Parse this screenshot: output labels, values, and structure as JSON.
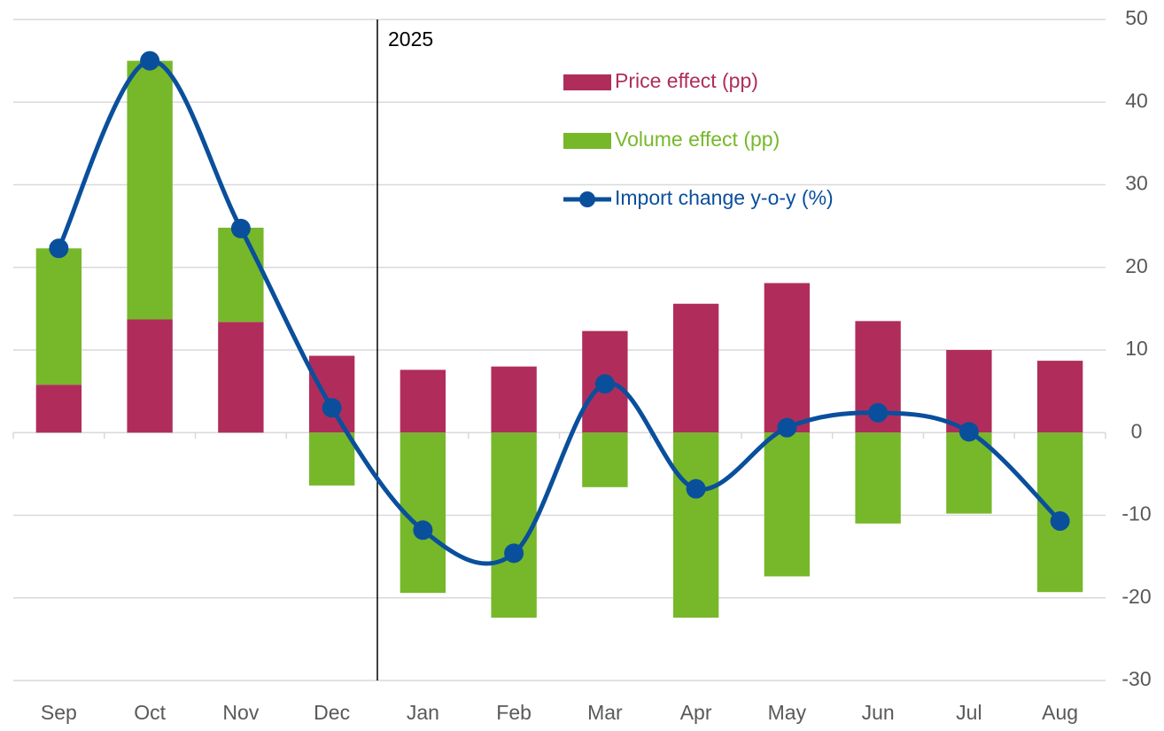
{
  "chart_data": {
    "type": "bar",
    "categories": [
      "Sep",
      "Oct",
      "Nov",
      "Dec",
      "Jan",
      "Feb",
      "Mar",
      "Apr",
      "May",
      "Jun",
      "Jul",
      "Aug"
    ],
    "series": [
      {
        "name": "Price effect (pp)",
        "color": "#b02d5b",
        "type": "bar",
        "values": [
          5.8,
          13.7,
          13.4,
          9.3,
          7.6,
          8.0,
          12.3,
          15.6,
          18.1,
          13.5,
          10.0,
          8.7
        ]
      },
      {
        "name": "Volume effect (pp)",
        "color": "#76b82a",
        "type": "bar",
        "values": [
          16.5,
          31.3,
          11.4,
          -6.4,
          -19.4,
          -22.4,
          -6.6,
          -22.4,
          -17.4,
          -11.0,
          -9.8,
          -19.3
        ]
      },
      {
        "name": "Import change y-o-y (%)",
        "color": "#0a4f9c",
        "type": "line",
        "values": [
          22.3,
          45.0,
          24.7,
          3.0,
          -11.8,
          -14.6,
          5.9,
          -6.8,
          0.6,
          2.4,
          0.1,
          -10.7
        ]
      }
    ],
    "annotations": [
      {
        "text": "2025",
        "after_category": 3
      }
    ],
    "ylim": [
      -30,
      50
    ],
    "yticks": [
      -30,
      -20,
      -10,
      0,
      10,
      20,
      30,
      40,
      50
    ],
    "y_axis_side": "right",
    "grid": true,
    "stacked": true
  }
}
